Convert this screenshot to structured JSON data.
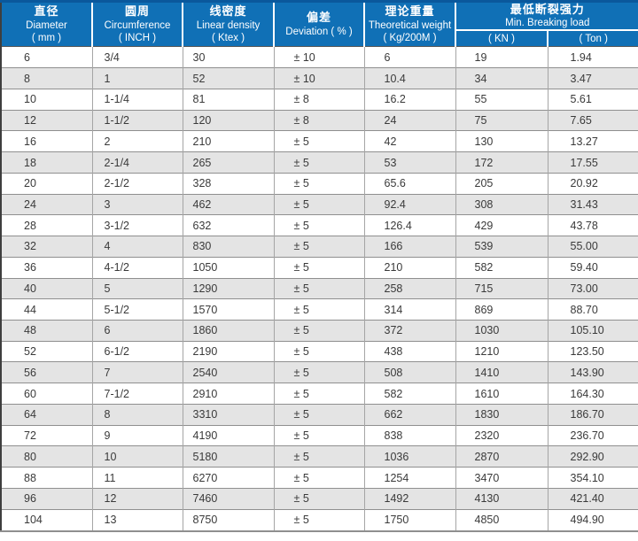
{
  "colors": {
    "header_blue": "#1070b6",
    "header_top_strip": "#0a589c",
    "header_text": "#ffffff",
    "stripe_gray": "#e4e4e4",
    "row_white": "#ffffff",
    "grid_line": "#8f8f8f",
    "outer_left_border": "#3e3e3e",
    "body_text": "#3a3a3a"
  },
  "table": {
    "columns": [
      {
        "zh": "直径",
        "en": "Diameter",
        "unit": "( mm )"
      },
      {
        "zh": "圆周",
        "en": "Circumference",
        "unit": "( INCH )"
      },
      {
        "zh": "线密度",
        "en": "Linear density",
        "unit": "( Ktex )"
      },
      {
        "zh": "偏差",
        "en": "Deviation ( % )",
        "unit": ""
      },
      {
        "zh": "理论重量",
        "en": "Theoretical weight",
        "unit": "( Kg/200M )"
      },
      {
        "zh": "最低断裂强力",
        "en": "Min. Breaking load",
        "unit": ""
      }
    ],
    "breaking_subcols": [
      "( KN )",
      "( Ton )"
    ],
    "row_fields": [
      "diameter",
      "circumference",
      "linear_density",
      "deviation",
      "weight",
      "kn",
      "ton"
    ],
    "rows": [
      {
        "diameter": "6",
        "circumference": "3/4",
        "linear_density": "30",
        "deviation": "± 10",
        "weight": "6",
        "kn": "19",
        "ton": "1.94"
      },
      {
        "diameter": "8",
        "circumference": "1",
        "linear_density": "52",
        "deviation": "± 10",
        "weight": "10.4",
        "kn": "34",
        "ton": "3.47"
      },
      {
        "diameter": "10",
        "circumference": "1-1/4",
        "linear_density": "81",
        "deviation": "± 8",
        "weight": "16.2",
        "kn": "55",
        "ton": "5.61"
      },
      {
        "diameter": "12",
        "circumference": "1-1/2",
        "linear_density": "120",
        "deviation": "± 8",
        "weight": "24",
        "kn": "75",
        "ton": "7.65"
      },
      {
        "diameter": "16",
        "circumference": "2",
        "linear_density": "210",
        "deviation": "± 5",
        "weight": "42",
        "kn": "130",
        "ton": "13.27"
      },
      {
        "diameter": "18",
        "circumference": "2-1/4",
        "linear_density": "265",
        "deviation": "± 5",
        "weight": "53",
        "kn": "172",
        "ton": "17.55"
      },
      {
        "diameter": "20",
        "circumference": "2-1/2",
        "linear_density": "328",
        "deviation": "± 5",
        "weight": "65.6",
        "kn": "205",
        "ton": "20.92"
      },
      {
        "diameter": "24",
        "circumference": "3",
        "linear_density": "462",
        "deviation": "± 5",
        "weight": "92.4",
        "kn": "308",
        "ton": "31.43"
      },
      {
        "diameter": "28",
        "circumference": "3-1/2",
        "linear_density": "632",
        "deviation": "± 5",
        "weight": "126.4",
        "kn": "429",
        "ton": "43.78"
      },
      {
        "diameter": "32",
        "circumference": "4",
        "linear_density": "830",
        "deviation": "± 5",
        "weight": "166",
        "kn": "539",
        "ton": "55.00"
      },
      {
        "diameter": "36",
        "circumference": "4-1/2",
        "linear_density": "1050",
        "deviation": "± 5",
        "weight": "210",
        "kn": "582",
        "ton": "59.40"
      },
      {
        "diameter": "40",
        "circumference": "5",
        "linear_density": "1290",
        "deviation": "± 5",
        "weight": "258",
        "kn": "715",
        "ton": "73.00"
      },
      {
        "diameter": "44",
        "circumference": "5-1/2",
        "linear_density": "1570",
        "deviation": "± 5",
        "weight": "314",
        "kn": "869",
        "ton": "88.70"
      },
      {
        "diameter": "48",
        "circumference": "6",
        "linear_density": "1860",
        "deviation": "± 5",
        "weight": "372",
        "kn": "1030",
        "ton": "105.10"
      },
      {
        "diameter": "52",
        "circumference": "6-1/2",
        "linear_density": "2190",
        "deviation": "± 5",
        "weight": "438",
        "kn": "1210",
        "ton": "123.50"
      },
      {
        "diameter": "56",
        "circumference": "7",
        "linear_density": "2540",
        "deviation": "± 5",
        "weight": "508",
        "kn": "1410",
        "ton": "143.90"
      },
      {
        "diameter": "60",
        "circumference": "7-1/2",
        "linear_density": "2910",
        "deviation": "± 5",
        "weight": "582",
        "kn": "1610",
        "ton": "164.30"
      },
      {
        "diameter": "64",
        "circumference": "8",
        "linear_density": "3310",
        "deviation": "± 5",
        "weight": "662",
        "kn": "1830",
        "ton": "186.70"
      },
      {
        "diameter": "72",
        "circumference": "9",
        "linear_density": "4190",
        "deviation": "± 5",
        "weight": "838",
        "kn": "2320",
        "ton": "236.70"
      },
      {
        "diameter": "80",
        "circumference": "10",
        "linear_density": "5180",
        "deviation": "± 5",
        "weight": "1036",
        "kn": "2870",
        "ton": "292.90"
      },
      {
        "diameter": "88",
        "circumference": "11",
        "linear_density": "6270",
        "deviation": "± 5",
        "weight": "1254",
        "kn": "3470",
        "ton": "354.10"
      },
      {
        "diameter": "96",
        "circumference": "12",
        "linear_density": "7460",
        "deviation": "± 5",
        "weight": "1492",
        "kn": "4130",
        "ton": "421.40"
      },
      {
        "diameter": "104",
        "circumference": "13",
        "linear_density": "8750",
        "deviation": "± 5",
        "weight": "1750",
        "kn": "4850",
        "ton": "494.90"
      }
    ]
  }
}
